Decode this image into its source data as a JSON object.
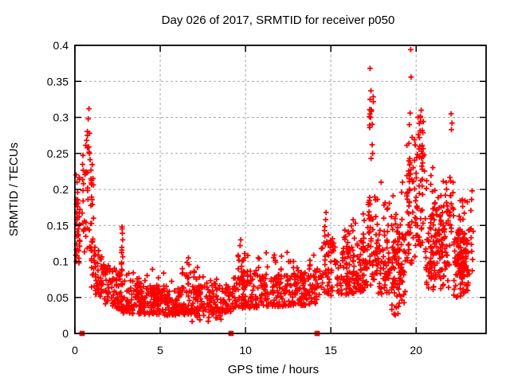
{
  "window": {
    "background_color": "#ffffff"
  },
  "chart_data": {
    "type": "scatter",
    "title": "Day 026 of 2017, SRMTID for receiver p050",
    "xlabel": "GPS time / hours",
    "ylabel": "SRMTID / TECUs",
    "xlim": [
      0,
      24.1
    ],
    "ylim": [
      0,
      0.4
    ],
    "xticks": [
      "0",
      "5",
      "10",
      "15",
      "20"
    ],
    "yticks": [
      "0",
      "0.05",
      "0.1",
      "0.15",
      "0.2",
      "0.25",
      "0.3",
      "0.35",
      "0.4"
    ],
    "grid": true,
    "grid_style": "dashed",
    "grid_color": "#a6a6a6",
    "frame_color": "#000000",
    "legend_position": "none",
    "marker_color": "#ff0000",
    "series": [
      {
        "name": "srmtid-scatter",
        "marker": "plus",
        "color": "#ff0000",
        "seed": 20170126,
        "segments": [
          [
            0.03,
            0.3,
            26,
            0.095,
            0.225,
            0.095,
            0.225,
            1.0
          ],
          [
            0.42,
            0.75,
            22,
            0.1,
            0.25,
            0.12,
            0.3,
            0.9
          ],
          [
            0.7,
            1.1,
            34,
            0.1,
            0.315,
            0.09,
            0.24,
            0.9
          ],
          [
            0.95,
            1.7,
            55,
            0.055,
            0.13,
            0.05,
            0.105,
            1.2
          ],
          [
            1.7,
            2.7,
            75,
            0.042,
            0.105,
            0.033,
            0.082,
            1.3
          ],
          [
            2.72,
            2.82,
            9,
            0.085,
            0.15,
            0.085,
            0.148,
            1.0
          ],
          [
            2.7,
            5.0,
            170,
            0.028,
            0.075,
            0.026,
            0.068,
            1.35
          ],
          [
            5.0,
            9.15,
            260,
            0.024,
            0.062,
            0.03,
            0.07,
            1.35
          ],
          [
            3.0,
            9.0,
            40,
            0.058,
            0.092,
            0.058,
            0.092,
            1.2
          ],
          [
            6.5,
            6.72,
            8,
            0.06,
            0.106,
            0.06,
            0.106,
            1.0
          ],
          [
            6.8,
            8.6,
            22,
            0.015,
            0.034,
            0.018,
            0.034,
            1.0
          ],
          [
            9.55,
            9.95,
            11,
            0.065,
            0.128,
            0.065,
            0.118,
            1.0
          ],
          [
            9.2,
            14.2,
            300,
            0.034,
            0.08,
            0.04,
            0.088,
            1.3
          ],
          [
            9.4,
            14.2,
            45,
            0.075,
            0.112,
            0.078,
            0.118,
            1.1
          ],
          [
            14.2,
            15.35,
            55,
            0.045,
            0.125,
            0.055,
            0.135,
            1.15
          ],
          [
            14.6,
            14.85,
            10,
            0.1,
            0.172,
            0.1,
            0.162,
            1.0
          ],
          [
            15.35,
            17.1,
            135,
            0.05,
            0.115,
            0.06,
            0.13,
            1.2
          ],
          [
            15.5,
            17.1,
            22,
            0.11,
            0.158,
            0.11,
            0.17,
            1.0
          ],
          [
            17.1,
            17.75,
            60,
            0.065,
            0.185,
            0.065,
            0.2,
            1.1
          ],
          [
            17.25,
            17.5,
            9,
            0.235,
            0.33,
            0.235,
            0.33,
            1.0
          ],
          [
            17.75,
            19.4,
            135,
            0.055,
            0.15,
            0.05,
            0.14,
            1.2
          ],
          [
            17.8,
            19.3,
            20,
            0.13,
            0.2,
            0.13,
            0.185,
            1.0
          ],
          [
            18.4,
            19.3,
            12,
            0.025,
            0.05,
            0.025,
            0.05,
            1.0
          ],
          [
            19.45,
            19.85,
            48,
            0.09,
            0.27,
            0.1,
            0.28,
            1.15
          ],
          [
            19.9,
            20.55,
            55,
            0.1,
            0.27,
            0.11,
            0.26,
            1.0
          ],
          [
            20.1,
            20.5,
            16,
            0.24,
            0.305,
            0.24,
            0.3,
            1.0
          ],
          [
            20.55,
            22.0,
            140,
            0.06,
            0.17,
            0.06,
            0.185,
            1.2
          ],
          [
            20.6,
            21.9,
            20,
            0.16,
            0.235,
            0.16,
            0.22,
            1.0
          ],
          [
            21.95,
            22.2,
            14,
            0.14,
            0.22,
            0.14,
            0.21,
            1.0
          ],
          [
            22.2,
            23.15,
            95,
            0.045,
            0.14,
            0.06,
            0.15,
            1.2
          ],
          [
            22.45,
            22.85,
            30,
            0.09,
            0.15,
            0.09,
            0.14,
            1.0
          ],
          [
            22.5,
            23.1,
            12,
            0.14,
            0.185,
            0.14,
            0.2,
            1.0
          ],
          [
            23.2,
            23.35,
            8,
            0.08,
            0.185,
            0.08,
            0.185,
            1.0
          ]
        ],
        "outliers": [
          [
            0.12,
            0.21
          ],
          [
            0.16,
            0.196
          ],
          [
            0.1,
            0.186
          ],
          [
            0.14,
            0.176
          ],
          [
            0.12,
            0.158
          ],
          [
            0.1,
            0.152
          ],
          [
            0.13,
            0.141
          ],
          [
            0.11,
            0.135
          ],
          [
            0.15,
            0.116
          ],
          [
            0.12,
            0.108
          ],
          [
            0.08,
            0.1
          ],
          [
            0.82,
            0.312
          ],
          [
            0.78,
            0.298
          ],
          [
            0.86,
            0.278
          ],
          [
            0.5,
            0.208
          ],
          [
            0.55,
            0.156
          ],
          [
            2.76,
            0.148
          ],
          [
            2.78,
            0.139
          ],
          [
            2.8,
            0.13
          ],
          [
            9.72,
            0.13
          ],
          [
            9.68,
            0.122
          ],
          [
            14.72,
            0.168
          ],
          [
            14.7,
            0.158
          ],
          [
            17.3,
            0.368
          ],
          [
            17.35,
            0.337
          ],
          [
            17.3,
            0.325
          ],
          [
            17.38,
            0.31
          ],
          [
            17.33,
            0.3
          ],
          [
            17.28,
            0.286
          ],
          [
            17.42,
            0.262
          ],
          [
            17.45,
            0.25
          ],
          [
            17.36,
            0.243
          ],
          [
            17.95,
            0.21
          ],
          [
            19.2,
            0.21
          ],
          [
            19.15,
            0.196
          ],
          [
            19.68,
            0.394
          ],
          [
            19.7,
            0.356
          ],
          [
            19.65,
            0.306
          ],
          [
            19.6,
            0.29
          ],
          [
            20.3,
            0.31
          ],
          [
            20.25,
            0.3
          ],
          [
            20.4,
            0.294
          ],
          [
            20.35,
            0.282
          ],
          [
            22.05,
            0.305
          ],
          [
            22.1,
            0.292
          ],
          [
            22.07,
            0.283
          ],
          [
            23.28,
            0.198
          ],
          [
            23.25,
            0.186
          ]
        ]
      },
      {
        "name": "baseline-event-markers",
        "marker": "filled-square",
        "color": "#ff0000",
        "points": [
          [
            0.42,
            0
          ],
          [
            9.15,
            0
          ],
          [
            14.2,
            0
          ]
        ]
      }
    ]
  }
}
